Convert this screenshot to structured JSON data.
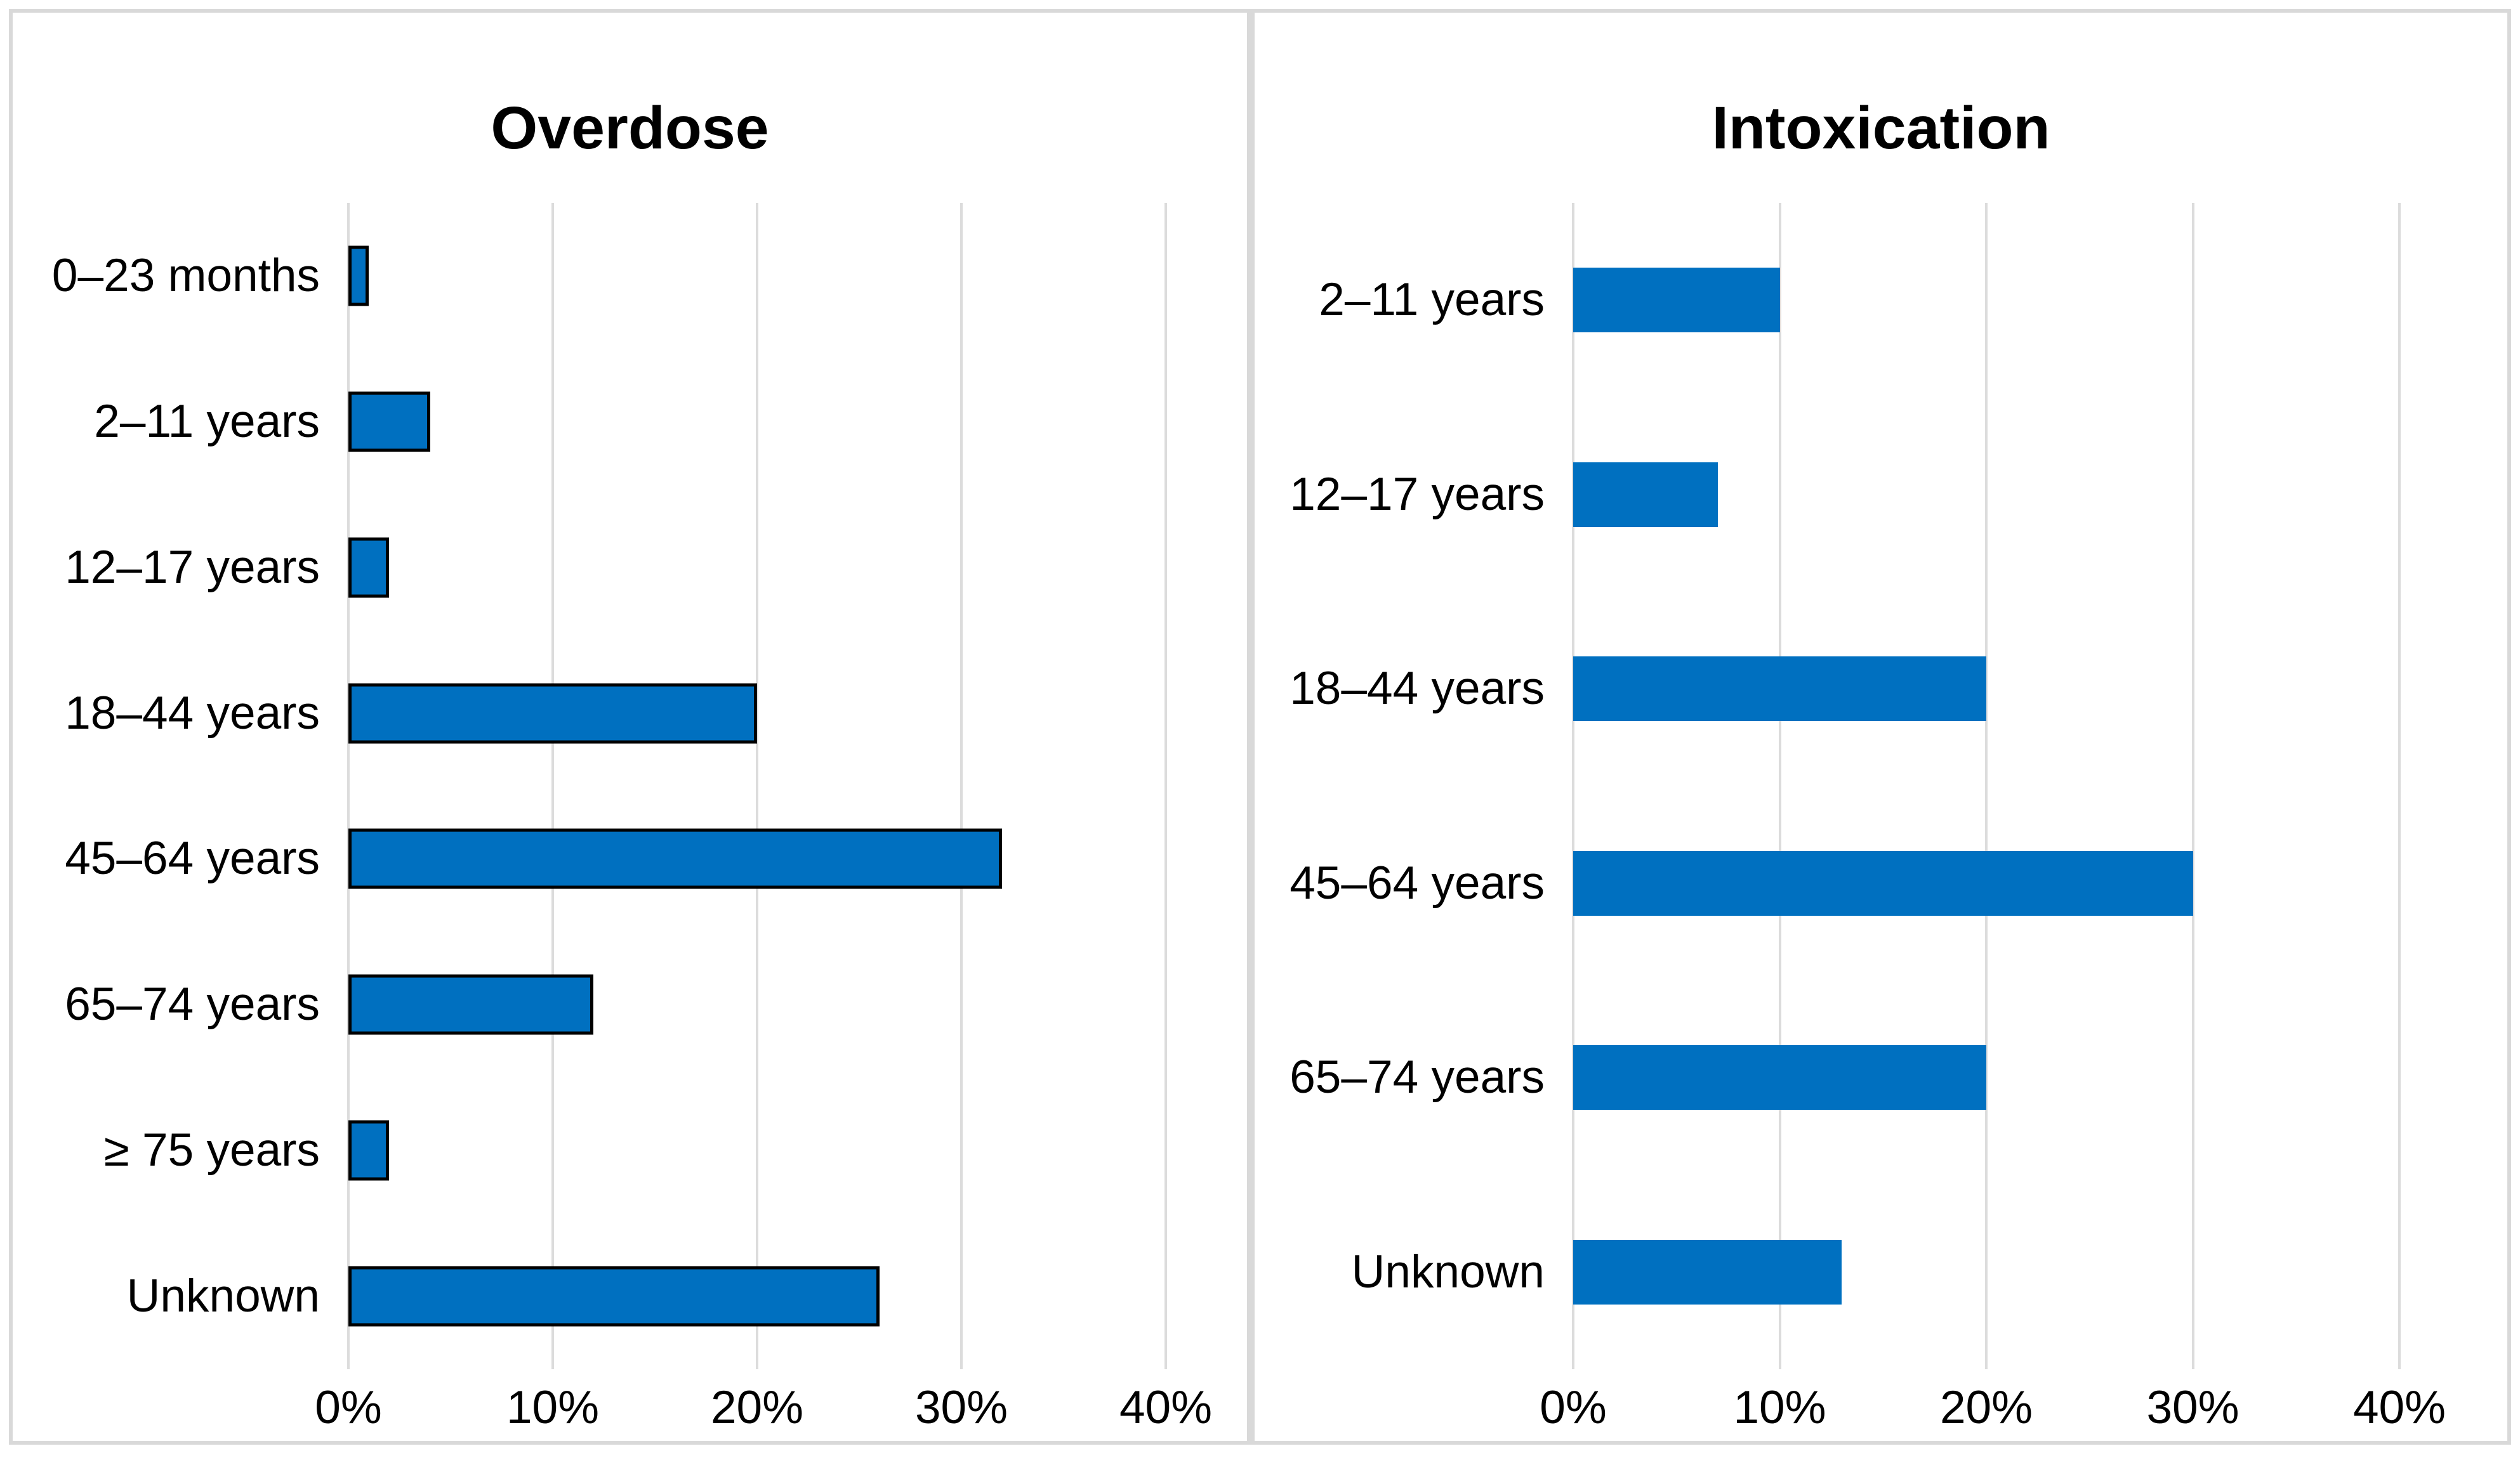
{
  "figure": {
    "description": "Two horizontal bar charts comparing percentage distributions by age group",
    "unit": "percent"
  },
  "colors": {
    "bar_fill": "#0070C0",
    "bar_outline": "#000000",
    "gridline": "#DCDCDC",
    "panel_border": "#D9D9D9",
    "text": "#000000",
    "background": "#FFFFFF"
  },
  "axis": {
    "tick_labels": [
      "0%",
      "10%",
      "20%",
      "30%",
      "40%"
    ],
    "min": 0,
    "max": 40
  },
  "chart_data": [
    {
      "type": "bar",
      "orientation": "horizontal",
      "title": "Overdose",
      "categories": [
        "0–23 months",
        "2–11 years",
        "12–17 years",
        "18–44 years",
        "45–64 years",
        "65–74 years",
        "≥ 75 years",
        "Unknown"
      ],
      "values": [
        1,
        4,
        2,
        20,
        32,
        12,
        2,
        26
      ],
      "xlabel": "",
      "ylabel": "",
      "xlim": [
        0,
        40
      ],
      "xtick_labels": [
        "0%",
        "10%",
        "20%",
        "30%",
        "40%"
      ],
      "grid": "vertical",
      "legend": "none",
      "bar_color": "#0070C0",
      "bar_outlined": true
    },
    {
      "type": "bar",
      "orientation": "horizontal",
      "title": "Intoxication",
      "categories": [
        "2–11 years",
        "12–17 years",
        "18–44 years",
        "45–64 years",
        "65–74 years",
        "Unknown"
      ],
      "values": [
        10,
        7,
        20,
        30,
        20,
        13
      ],
      "xlabel": "",
      "ylabel": "",
      "xlim": [
        0,
        40
      ],
      "xtick_labels": [
        "0%",
        "10%",
        "20%",
        "30%",
        "40%"
      ],
      "grid": "vertical",
      "legend": "none",
      "bar_color": "#0070C0",
      "bar_outlined": false
    }
  ]
}
